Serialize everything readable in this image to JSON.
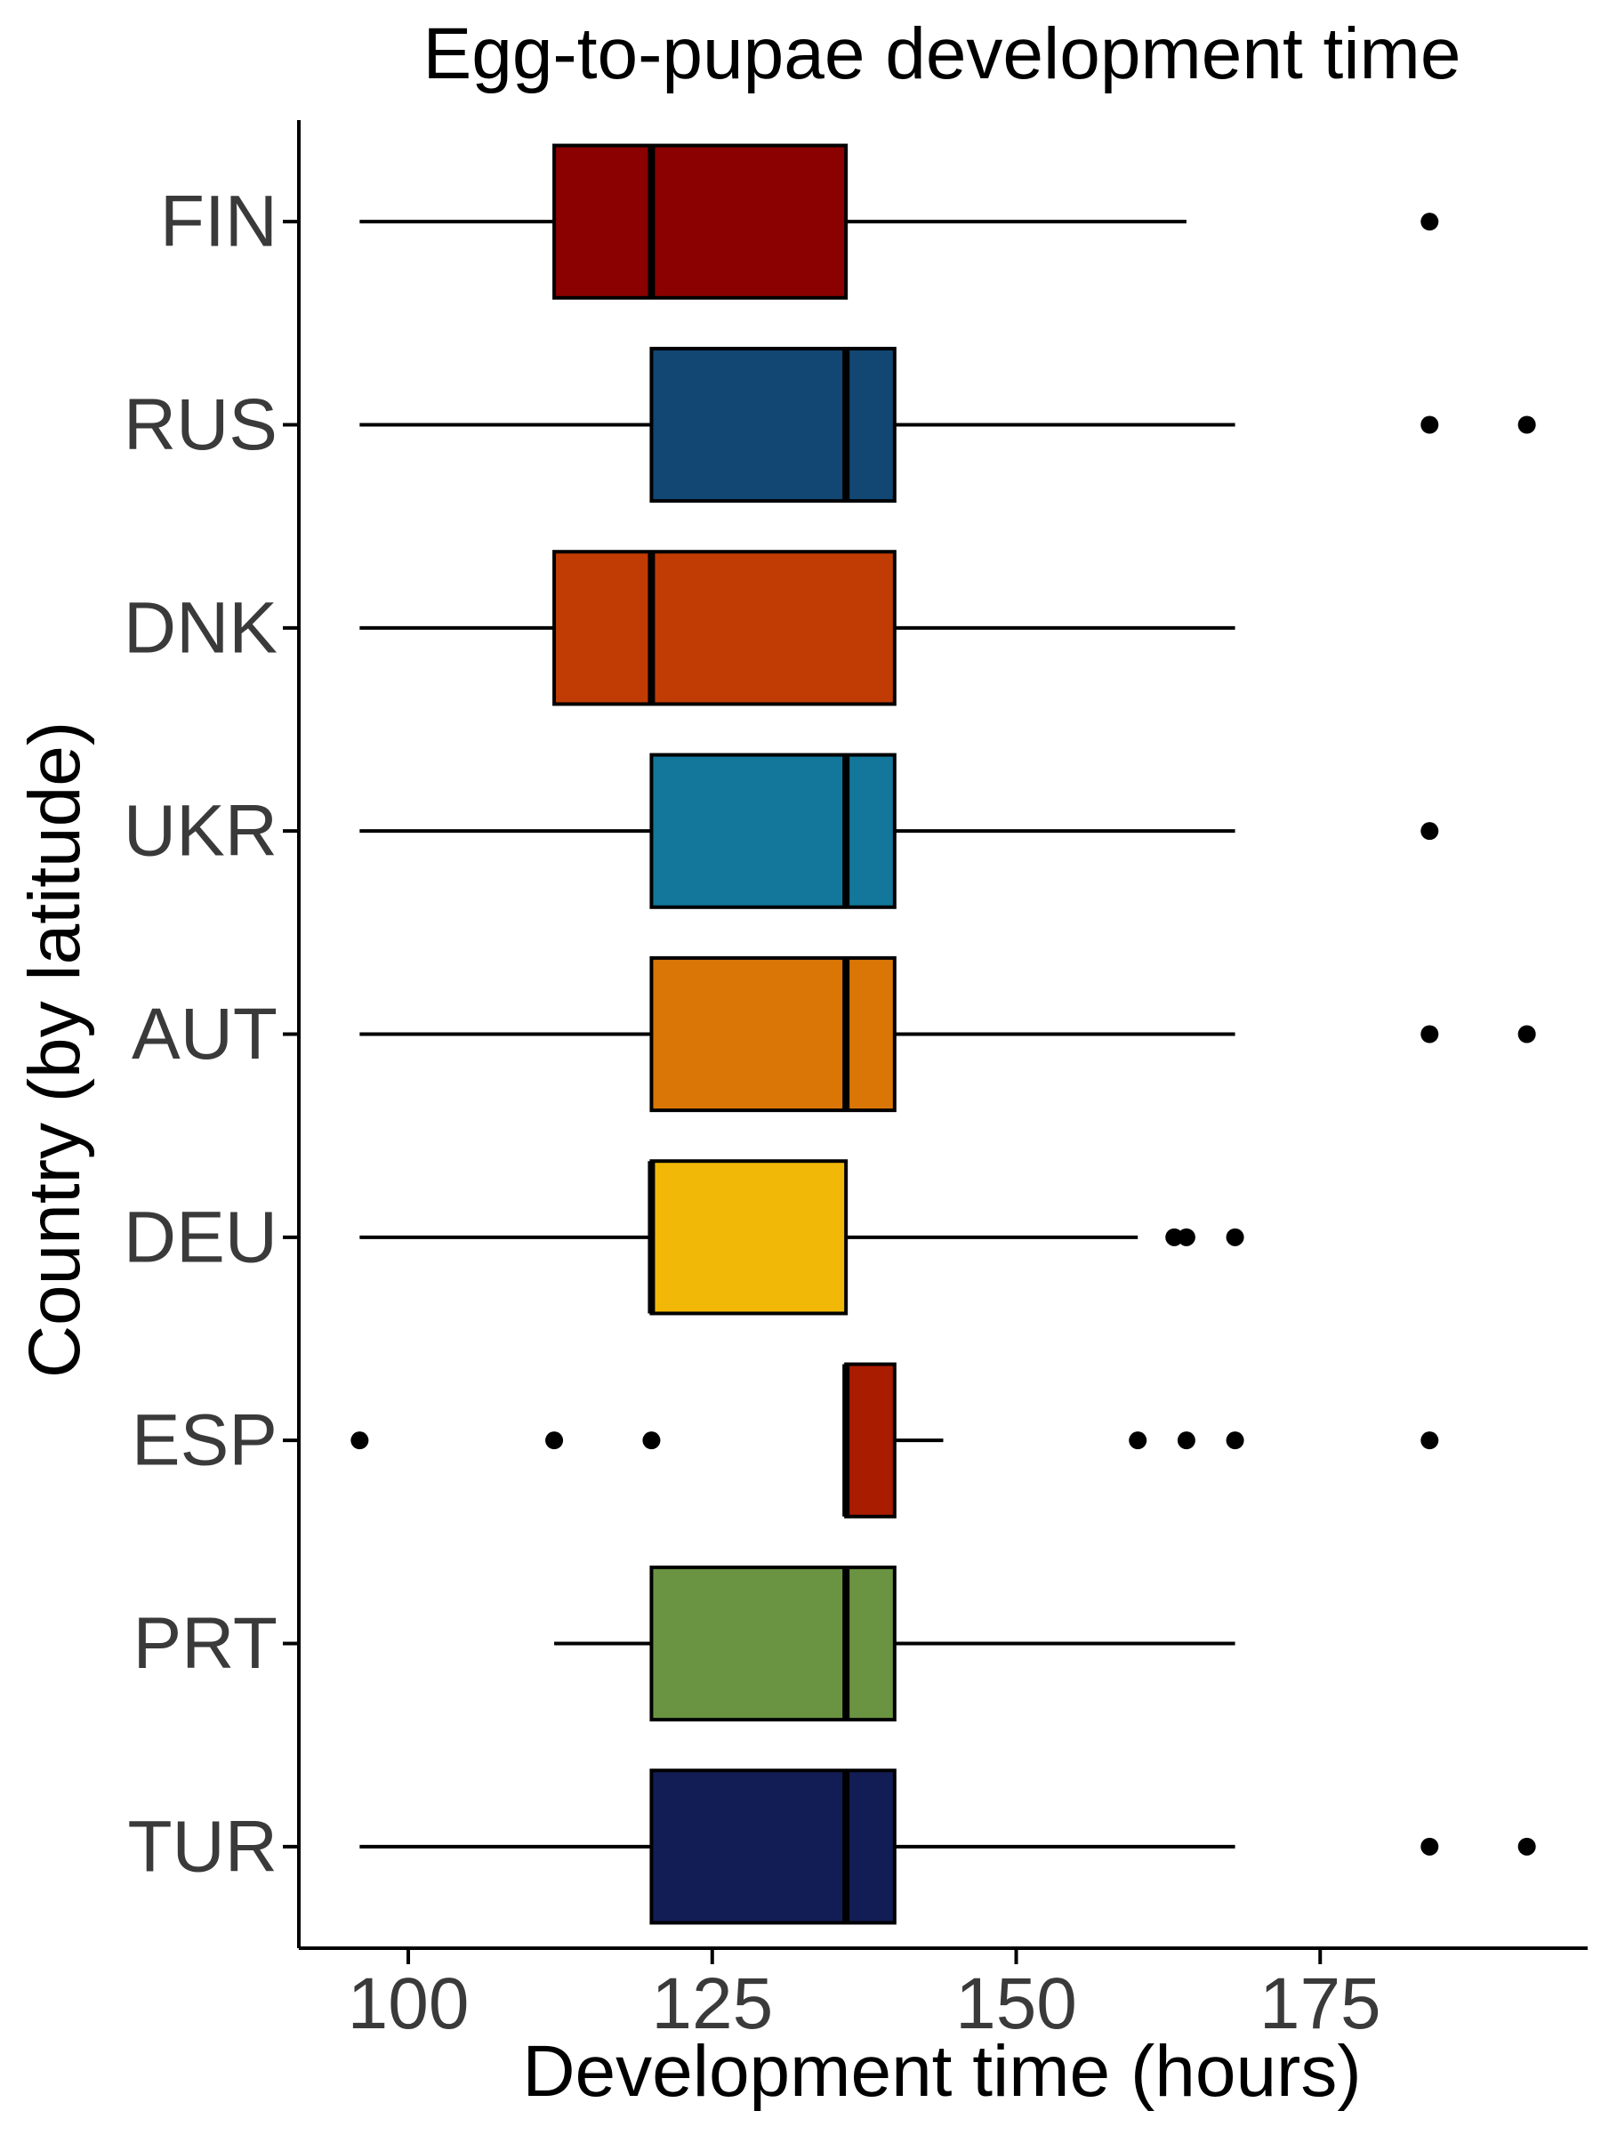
{
  "chart_data": {
    "type": "boxplot",
    "orientation": "horizontal",
    "title": "Egg-to-pupae development time",
    "xlabel": "Development time (hours)",
    "ylabel": "Country (by latitude)",
    "xlim": [
      91,
      197
    ],
    "xticks": [
      100,
      125,
      150,
      175
    ],
    "grid": false,
    "legend": "none",
    "categories": [
      "FIN",
      "RUS",
      "DNK",
      "UKR",
      "AUT",
      "DEU",
      "ESP",
      "PRT",
      "TUR"
    ],
    "boxes": [
      {
        "label": "FIN",
        "whisker_low": 96,
        "q1": 112,
        "median": 120,
        "q3": 136,
        "whisker_high": 164,
        "outliers": [
          184
        ],
        "color": "#8B0000"
      },
      {
        "label": "RUS",
        "whisker_low": 96,
        "q1": 120,
        "median": 136,
        "q3": 140,
        "whisker_high": 168,
        "outliers": [
          184,
          192
        ],
        "color": "#124673"
      },
      {
        "label": "DNK",
        "whisker_low": 96,
        "q1": 112,
        "median": 120,
        "q3": 140,
        "whisker_high": 168,
        "outliers": [],
        "color": "#C13C04"
      },
      {
        "label": "UKR",
        "whisker_low": 96,
        "q1": 120,
        "median": 136,
        "q3": 140,
        "whisker_high": 168,
        "outliers": [
          184
        ],
        "color": "#12779B"
      },
      {
        "label": "AUT",
        "whisker_low": 96,
        "q1": 120,
        "median": 136,
        "q3": 140,
        "whisker_high": 168,
        "outliers": [
          184,
          192
        ],
        "color": "#D97606"
      },
      {
        "label": "DEU",
        "whisker_low": 96,
        "q1": 120,
        "median": 120,
        "q3": 136,
        "whisker_high": 160,
        "outliers": [
          163,
          164,
          168
        ],
        "color": "#F2B807"
      },
      {
        "label": "ESP",
        "whisker_low": 136,
        "q1": 136,
        "median": 136,
        "q3": 140,
        "whisker_high": 144,
        "outliers": [
          96,
          112,
          120,
          160,
          164,
          168,
          184
        ],
        "color": "#A91C00"
      },
      {
        "label": "PRT",
        "whisker_low": 112,
        "q1": 120,
        "median": 136,
        "q3": 140,
        "whisker_high": 168,
        "outliers": [],
        "color": "#6B9442"
      },
      {
        "label": "TUR",
        "whisker_low": 96,
        "q1": 120,
        "median": 136,
        "q3": 140,
        "whisker_high": 168,
        "outliers": [
          184,
          192
        ],
        "color": "#121D56"
      }
    ]
  }
}
